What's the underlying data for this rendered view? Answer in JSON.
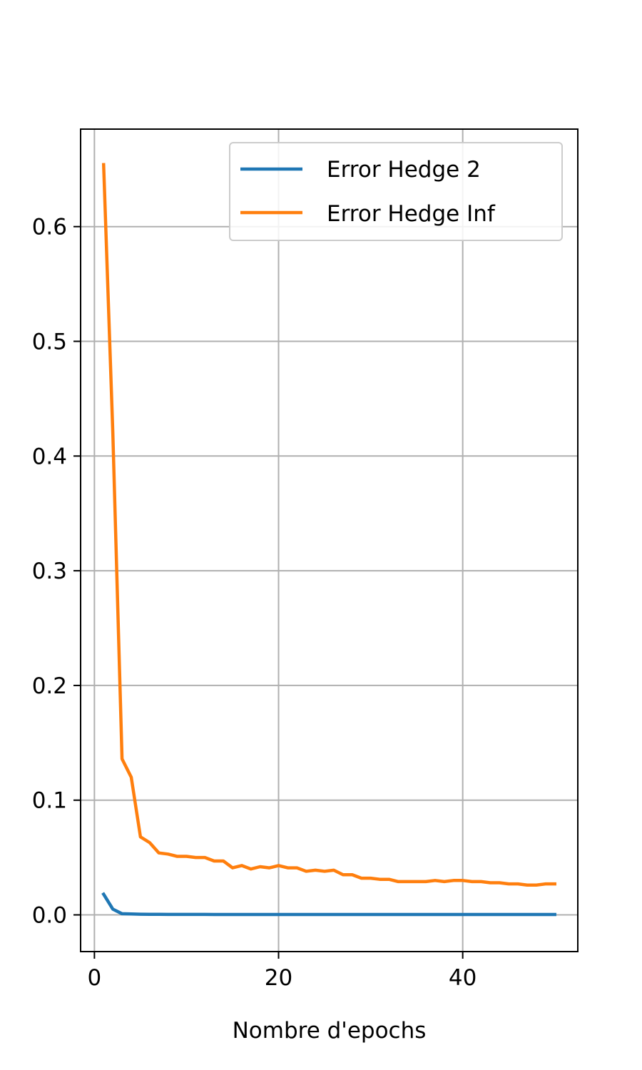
{
  "chart_data": {
    "type": "line",
    "xlabel": "Nombre d'epochs",
    "ylabel": "",
    "title": "",
    "xlim": [
      -1.5,
      52.5
    ],
    "ylim": [
      -0.032,
      0.685
    ],
    "xticks": [
      0,
      20,
      40
    ],
    "xtick_labels": [
      "0",
      "20",
      "40"
    ],
    "yticks": [
      0.0,
      0.1,
      0.2,
      0.3,
      0.4,
      0.5,
      0.6
    ],
    "ytick_labels": [
      "0.0",
      "0.1",
      "0.2",
      "0.3",
      "0.4",
      "0.5",
      "0.6"
    ],
    "grid": true,
    "legend_position": "top-right",
    "series": [
      {
        "name": "Error Hedge 2",
        "color": "#1f77b4",
        "x": [
          1,
          2,
          3,
          4,
          5,
          6,
          7,
          8,
          9,
          10,
          11,
          12,
          13,
          14,
          15,
          16,
          17,
          18,
          19,
          20,
          21,
          22,
          23,
          24,
          25,
          26,
          27,
          28,
          29,
          30,
          31,
          32,
          33,
          34,
          35,
          36,
          37,
          38,
          39,
          40,
          41,
          42,
          43,
          44,
          45,
          46,
          47,
          48,
          49,
          50
        ],
        "y": [
          0.018,
          0.005,
          0.001,
          0.0008,
          0.0006,
          0.0005,
          0.0005,
          0.0004,
          0.0004,
          0.0004,
          0.0004,
          0.0004,
          0.0003,
          0.0003,
          0.0003,
          0.0003,
          0.0003,
          0.0003,
          0.0003,
          0.0003,
          0.0003,
          0.0003,
          0.0003,
          0.0003,
          0.0003,
          0.0003,
          0.0003,
          0.0003,
          0.0003,
          0.0003,
          0.0003,
          0.0003,
          0.0003,
          0.0003,
          0.0003,
          0.0003,
          0.0003,
          0.0003,
          0.0003,
          0.0003,
          0.0003,
          0.0003,
          0.0003,
          0.0003,
          0.0003,
          0.0003,
          0.0003,
          0.0003,
          0.0003,
          0.0003
        ]
      },
      {
        "name": "Error Hedge Inf",
        "color": "#ff7f0e",
        "x": [
          1,
          2,
          3,
          4,
          5,
          6,
          7,
          8,
          9,
          10,
          11,
          12,
          13,
          14,
          15,
          16,
          17,
          18,
          19,
          20,
          21,
          22,
          23,
          24,
          25,
          26,
          27,
          28,
          29,
          30,
          31,
          32,
          33,
          34,
          35,
          36,
          37,
          38,
          39,
          40,
          41,
          42,
          43,
          44,
          45,
          46,
          47,
          48,
          49,
          50
        ],
        "y": [
          0.654,
          0.42,
          0.136,
          0.12,
          0.068,
          0.063,
          0.054,
          0.053,
          0.051,
          0.051,
          0.05,
          0.05,
          0.047,
          0.047,
          0.041,
          0.043,
          0.04,
          0.042,
          0.041,
          0.043,
          0.041,
          0.041,
          0.038,
          0.039,
          0.038,
          0.039,
          0.035,
          0.035,
          0.032,
          0.032,
          0.031,
          0.031,
          0.029,
          0.029,
          0.029,
          0.029,
          0.03,
          0.029,
          0.03,
          0.03,
          0.029,
          0.029,
          0.028,
          0.028,
          0.027,
          0.027,
          0.026,
          0.026,
          0.027,
          0.027
        ]
      }
    ]
  }
}
